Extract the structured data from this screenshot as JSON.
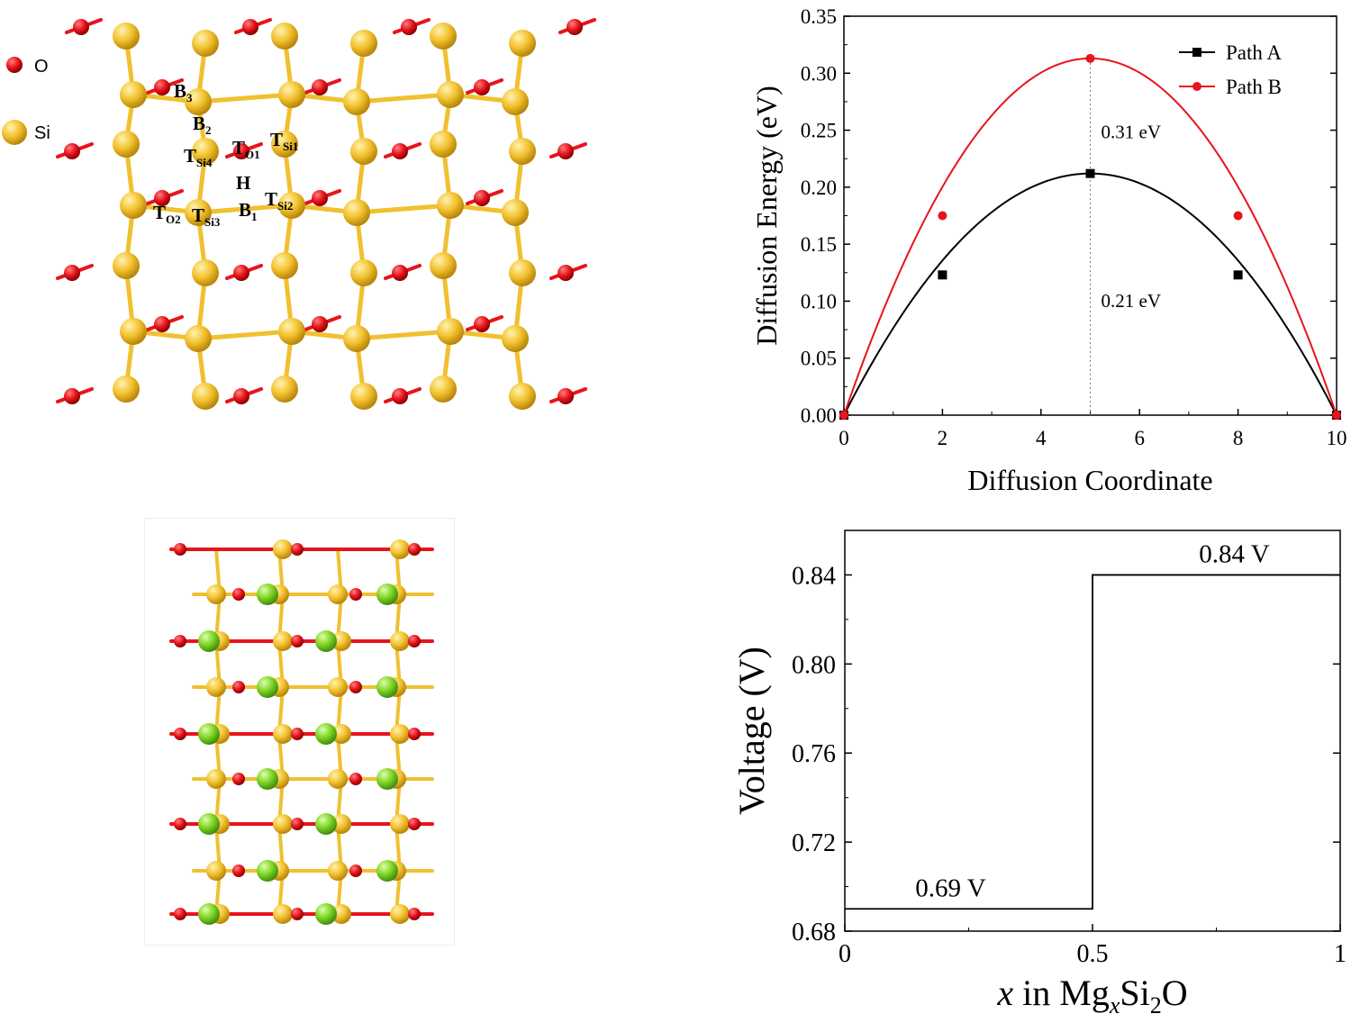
{
  "structure_legend": {
    "o_label": "O",
    "si_label": "Si"
  },
  "site_labels": [
    {
      "base": "B",
      "sub": "3"
    },
    {
      "base": "B",
      "sub": "2"
    },
    {
      "base": "T",
      "sub": "Si4"
    },
    {
      "base": "T",
      "sub": "O1"
    },
    {
      "base": "T",
      "sub": "Si1"
    },
    {
      "base": "H",
      "sub": ""
    },
    {
      "base": "T",
      "sub": "Si2"
    },
    {
      "base": "T",
      "sub": "O2"
    },
    {
      "base": "T",
      "sub": "Si3"
    },
    {
      "base": "B",
      "sub": "1"
    }
  ],
  "colors": {
    "oxygen": "#e8141c",
    "silicon": "#f2c12e",
    "magnesium": "#7ed321",
    "bond": "#f0c030",
    "path_a": "#000000",
    "path_b": "#e8141c"
  },
  "chart_data": [
    {
      "type": "line",
      "xlabel": "Diffusion Coordinate",
      "ylabel": "Diffusion Energy (eV)",
      "xlim": [
        0,
        10
      ],
      "ylim": [
        0,
        0.35
      ],
      "xticks": [
        "0",
        "2",
        "4",
        "6",
        "8",
        "10"
      ],
      "yticks": [
        "0.00",
        "0.05",
        "0.10",
        "0.15",
        "0.20",
        "0.25",
        "0.30",
        "0.35"
      ],
      "series": [
        {
          "name": "Path A",
          "x": [
            0,
            2,
            5,
            8,
            10
          ],
          "y": [
            0.0,
            0.123,
            0.212,
            0.123,
            0.0
          ]
        },
        {
          "name": "Path B",
          "x": [
            0,
            2,
            5,
            8,
            10
          ],
          "y": [
            0.0,
            0.175,
            0.313,
            0.175,
            0.0
          ]
        }
      ],
      "annotations": [
        "0.31 eV",
        "0.21 eV"
      ],
      "legend": "top-right"
    },
    {
      "type": "line",
      "xlabel": "x in MgxSi2O",
      "ylabel": "Voltage (V)",
      "xlim": [
        0,
        1
      ],
      "ylim": [
        0.68,
        0.86
      ],
      "xticks": [
        "0",
        "0.5",
        "1"
      ],
      "yticks": [
        "0.68",
        "0.72",
        "0.76",
        "0.80",
        "0.84"
      ],
      "steps": [
        {
          "x_start": 0,
          "x_end": 0.5,
          "voltage": 0.69
        },
        {
          "x_start": 0.5,
          "x_end": 1,
          "voltage": 0.84
        }
      ],
      "annotations": [
        "0.69 V",
        "0.84 V"
      ]
    }
  ],
  "xlabel_parts": {
    "x": "x",
    "in": " in Mg",
    "x_sub": "x",
    "si": "Si",
    "two": "2",
    "o": "O"
  }
}
